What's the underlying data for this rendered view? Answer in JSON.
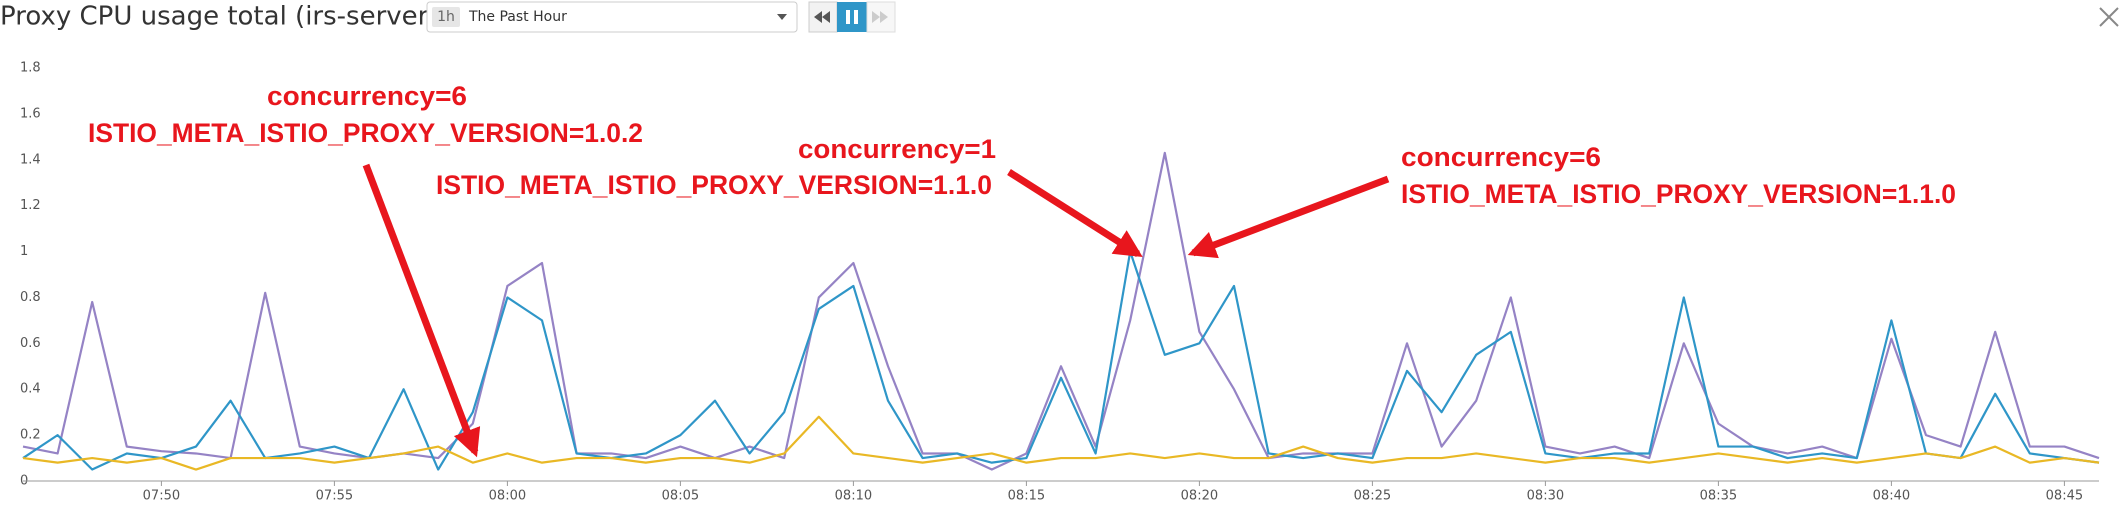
{
  "chart_data": {
    "type": "line",
    "title": "Proxy CPU usage total (irs-server)",
    "time_range": {
      "short": "1h",
      "label": "The Past Hour"
    },
    "annotations": [
      "concurrency=6",
      "ISTIO_META_ISTIO_PROXY_VERSION=1.0.2",
      "concurrency=1",
      "ISTIO_META_ISTIO_PROXY_VERSION=1.1.0",
      "concurrency=6",
      "ISTIO_META_ISTIO_PROXY_VERSION=1.1.0"
    ],
    "x": [
      "07:46",
      "07:47",
      "07:48",
      "07:49",
      "07:50",
      "07:51",
      "07:52",
      "07:53",
      "07:54",
      "07:55",
      "07:56",
      "07:57",
      "07:58",
      "07:59",
      "08:00",
      "08:01",
      "08:02",
      "08:03",
      "08:04",
      "08:05",
      "08:06",
      "08:07",
      "08:08",
      "08:09",
      "08:10",
      "08:11",
      "08:12",
      "08:13",
      "08:14",
      "08:15",
      "08:16",
      "08:17",
      "08:18",
      "08:19",
      "08:20",
      "08:21",
      "08:22",
      "08:23",
      "08:24",
      "08:25",
      "08:26",
      "08:27",
      "08:28",
      "08:29",
      "08:30",
      "08:31",
      "08:32",
      "08:33",
      "08:34",
      "08:35",
      "08:36",
      "08:37",
      "08:38",
      "08:39",
      "08:40",
      "08:41",
      "08:42",
      "08:43",
      "08:44",
      "08:45",
      "08:46"
    ],
    "xticks": [
      "07:50",
      "07:55",
      "08:00",
      "08:05",
      "08:10",
      "08:15",
      "08:20",
      "08:25",
      "08:30",
      "08:35",
      "08:40",
      "08:45"
    ],
    "series": [
      {
        "color": "#9583c5",
        "values": [
          0.15,
          0.12,
          0.78,
          0.15,
          0.13,
          0.12,
          0.1,
          0.82,
          0.15,
          0.12,
          0.1,
          0.12,
          0.1,
          0.25,
          0.85,
          0.95,
          0.12,
          0.12,
          0.1,
          0.15,
          0.1,
          0.15,
          0.1,
          0.8,
          0.95,
          0.5,
          0.12,
          0.12,
          0.05,
          0.12,
          0.5,
          0.15,
          0.7,
          1.43,
          0.65,
          0.4,
          0.1,
          0.12,
          0.12,
          0.12,
          0.6,
          0.15,
          0.35,
          0.8,
          0.15,
          0.12,
          0.15,
          0.1,
          0.6,
          0.25,
          0.15,
          0.12,
          0.15,
          0.1,
          0.62,
          0.2,
          0.15,
          0.65,
          0.15,
          0.15,
          0.1
        ]
      },
      {
        "color": "#2f96c8",
        "values": [
          0.1,
          0.2,
          0.05,
          0.12,
          0.1,
          0.15,
          0.35,
          0.1,
          0.12,
          0.15,
          0.1,
          0.4,
          0.05,
          0.3,
          0.8,
          0.7,
          0.12,
          0.1,
          0.12,
          0.2,
          0.35,
          0.12,
          0.3,
          0.75,
          0.85,
          0.35,
          0.1,
          0.12,
          0.08,
          0.1,
          0.45,
          0.12,
          1.0,
          0.55,
          0.6,
          0.85,
          0.12,
          0.1,
          0.12,
          0.1,
          0.48,
          0.3,
          0.55,
          0.65,
          0.12,
          0.1,
          0.12,
          0.12,
          0.8,
          0.15,
          0.15,
          0.1,
          0.12,
          0.1,
          0.7,
          0.12,
          0.1,
          0.38,
          0.12,
          0.1,
          0.08
        ]
      },
      {
        "color": "#e9b825",
        "values": [
          0.1,
          0.08,
          0.1,
          0.08,
          0.1,
          0.05,
          0.1,
          0.1,
          0.1,
          0.08,
          0.1,
          0.12,
          0.15,
          0.08,
          0.12,
          0.08,
          0.1,
          0.1,
          0.08,
          0.1,
          0.1,
          0.08,
          0.12,
          0.28,
          0.12,
          0.1,
          0.08,
          0.1,
          0.12,
          0.08,
          0.1,
          0.1,
          0.12,
          0.1,
          0.12,
          0.1,
          0.1,
          0.15,
          0.1,
          0.08,
          0.1,
          0.1,
          0.12,
          0.1,
          0.08,
          0.1,
          0.1,
          0.08,
          0.1,
          0.12,
          0.1,
          0.08,
          0.1,
          0.08,
          0.1,
          0.12,
          0.1,
          0.15,
          0.08,
          0.1,
          0.08
        ]
      }
    ],
    "ylim": [
      0,
      1.8
    ],
    "yticks": [
      0,
      0.2,
      0.4,
      0.6,
      0.8,
      1,
      1.2,
      1.4,
      1.6,
      1.8
    ],
    "grid": false
  }
}
